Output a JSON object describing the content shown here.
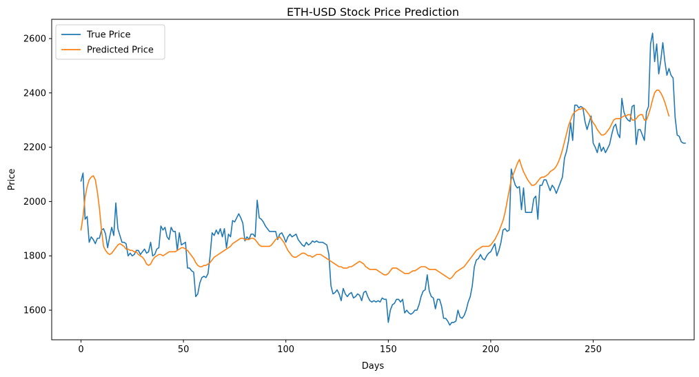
{
  "chart_data": {
    "type": "line",
    "title": "ETH-USD Stock Price Prediction",
    "xlabel": "Days",
    "ylabel": "Price",
    "xlim": [
      -14.3,
      299.3
    ],
    "ylim": [
      1491,
      2671
    ],
    "x_ticks": [
      0,
      50,
      100,
      150,
      200,
      250
    ],
    "y_ticks": [
      1600,
      1800,
      2000,
      2200,
      2400,
      2600
    ],
    "x_tick_labels": [
      "0",
      "50",
      "100",
      "150",
      "200",
      "250"
    ],
    "y_tick_labels": [
      "1600",
      "1800",
      "2000",
      "2200",
      "2400",
      "2600"
    ],
    "grid": false,
    "legend_position": "upper left",
    "series": [
      {
        "name": "True Price",
        "color": "#1f77b4",
        "values": [
          2075,
          2105,
          1935,
          1945,
          1850,
          1870,
          1860,
          1845,
          1865,
          1865,
          1895,
          1900,
          1880,
          1830,
          1870,
          1905,
          1875,
          1995,
          1900,
          1875,
          1850,
          1850,
          1845,
          1800,
          1810,
          1800,
          1805,
          1820,
          1820,
          1805,
          1815,
          1825,
          1810,
          1815,
          1850,
          1800,
          1805,
          1825,
          1830,
          1910,
          1895,
          1905,
          1870,
          1860,
          1905,
          1890,
          1890,
          1820,
          1885,
          1840,
          1845,
          1850,
          1755,
          1755,
          1745,
          1740,
          1650,
          1660,
          1700,
          1720,
          1725,
          1720,
          1735,
          1800,
          1885,
          1875,
          1895,
          1880,
          1900,
          1870,
          1900,
          1830,
          1880,
          1870,
          1930,
          1925,
          1940,
          1955,
          1940,
          1920,
          1855,
          1870,
          1860,
          1880,
          1880,
          1870,
          2005,
          1940,
          1935,
          1925,
          1910,
          1900,
          1890,
          1890,
          1890,
          1890,
          1860,
          1880,
          1885,
          1870,
          1850,
          1870,
          1880,
          1870,
          1875,
          1880,
          1860,
          1850,
          1840,
          1835,
          1850,
          1840,
          1845,
          1855,
          1850,
          1855,
          1850,
          1850,
          1850,
          1845,
          1840,
          1805,
          1690,
          1660,
          1665,
          1675,
          1660,
          1635,
          1680,
          1660,
          1650,
          1660,
          1665,
          1645,
          1650,
          1660,
          1655,
          1635,
          1665,
          1670,
          1650,
          1635,
          1630,
          1635,
          1630,
          1635,
          1630,
          1645,
          1640,
          1640,
          1555,
          1600,
          1620,
          1625,
          1640,
          1640,
          1630,
          1640,
          1590,
          1600,
          1590,
          1585,
          1590,
          1600,
          1600,
          1620,
          1650,
          1670,
          1675,
          1730,
          1670,
          1650,
          1645,
          1605,
          1640,
          1640,
          1615,
          1570,
          1570,
          1560,
          1545,
          1555,
          1555,
          1560,
          1600,
          1575,
          1570,
          1580,
          1600,
          1630,
          1650,
          1690,
          1760,
          1785,
          1790,
          1805,
          1790,
          1785,
          1800,
          1810,
          1815,
          1830,
          1845,
          1800,
          1820,
          1850,
          1895,
          1900,
          1890,
          1895,
          2120,
          2085,
          2060,
          2050,
          2055,
          1970,
          2050,
          1960,
          1960,
          1960,
          1960,
          2010,
          2020,
          1935,
          2060,
          2060,
          2080,
          2080,
          2060,
          2040,
          2060,
          2050,
          2030,
          2050,
          2070,
          2090,
          2160,
          2185,
          2225,
          2290,
          2225,
          2355,
          2355,
          2345,
          2350,
          2345,
          2295,
          2265,
          2290,
          2315,
          2215,
          2200,
          2180,
          2215,
          2185,
          2200,
          2180,
          2195,
          2210,
          2245,
          2275,
          2285,
          2250,
          2235,
          2380,
          2330,
          2310,
          2300,
          2295,
          2350,
          2355,
          2210,
          2265,
          2265,
          2245,
          2225,
          2330,
          2350,
          2580,
          2620,
          2515,
          2580,
          2470,
          2520,
          2585,
          2515,
          2465,
          2490,
          2465,
          2455,
          2310,
          2245,
          2240,
          2220,
          2215,
          2215
        ]
      },
      {
        "name": "Predicted Price",
        "color": "#ff7f0e",
        "values": [
          1895,
          1945,
          2015,
          2055,
          2080,
          2090,
          2095,
          2080,
          2035,
          1975,
          1895,
          1835,
          1820,
          1810,
          1805,
          1810,
          1820,
          1830,
          1840,
          1845,
          1840,
          1835,
          1825,
          1825,
          1820,
          1820,
          1815,
          1815,
          1805,
          1800,
          1795,
          1785,
          1770,
          1765,
          1770,
          1785,
          1795,
          1800,
          1805,
          1805,
          1800,
          1805,
          1810,
          1815,
          1815,
          1815,
          1815,
          1820,
          1825,
          1830,
          1830,
          1825,
          1820,
          1810,
          1800,
          1790,
          1775,
          1765,
          1760,
          1760,
          1765,
          1765,
          1770,
          1775,
          1785,
          1795,
          1800,
          1805,
          1810,
          1815,
          1820,
          1825,
          1830,
          1835,
          1845,
          1850,
          1855,
          1860,
          1865,
          1865,
          1860,
          1860,
          1860,
          1865,
          1865,
          1860,
          1850,
          1840,
          1835,
          1835,
          1835,
          1835,
          1835,
          1840,
          1850,
          1860,
          1865,
          1870,
          1860,
          1850,
          1835,
          1820,
          1810,
          1800,
          1795,
          1795,
          1800,
          1805,
          1810,
          1810,
          1805,
          1800,
          1800,
          1795,
          1800,
          1805,
          1805,
          1805,
          1800,
          1795,
          1790,
          1785,
          1780,
          1775,
          1770,
          1765,
          1760,
          1760,
          1755,
          1755,
          1755,
          1760,
          1760,
          1765,
          1770,
          1775,
          1780,
          1775,
          1770,
          1760,
          1755,
          1750,
          1750,
          1750,
          1750,
          1745,
          1740,
          1735,
          1730,
          1730,
          1735,
          1745,
          1755,
          1755,
          1755,
          1750,
          1745,
          1740,
          1735,
          1735,
          1735,
          1740,
          1745,
          1745,
          1750,
          1755,
          1760,
          1760,
          1760,
          1755,
          1750,
          1750,
          1750,
          1750,
          1745,
          1740,
          1735,
          1730,
          1725,
          1720,
          1715,
          1720,
          1730,
          1740,
          1745,
          1750,
          1755,
          1760,
          1770,
          1780,
          1790,
          1800,
          1810,
          1820,
          1825,
          1830,
          1835,
          1835,
          1835,
          1835,
          1840,
          1850,
          1860,
          1875,
          1890,
          1910,
          1930,
          1960,
          2000,
          2040,
          2080,
          2100,
          2120,
          2140,
          2155,
          2130,
          2110,
          2095,
          2080,
          2070,
          2060,
          2060,
          2065,
          2075,
          2085,
          2090,
          2090,
          2095,
          2100,
          2110,
          2115,
          2120,
          2130,
          2145,
          2165,
          2190,
          2220,
          2250,
          2280,
          2300,
          2320,
          2330,
          2335,
          2340,
          2340,
          2345,
          2340,
          2330,
          2320,
          2305,
          2290,
          2280,
          2265,
          2255,
          2245,
          2245,
          2250,
          2260,
          2270,
          2285,
          2300,
          2305,
          2305,
          2305,
          2310,
          2315,
          2315,
          2320,
          2320,
          2300,
          2300,
          2305,
          2315,
          2320,
          2320,
          2300,
          2300,
          2320,
          2345,
          2375,
          2400,
          2410,
          2410,
          2400,
          2385,
          2365,
          2340,
          2315
        ]
      }
    ]
  }
}
